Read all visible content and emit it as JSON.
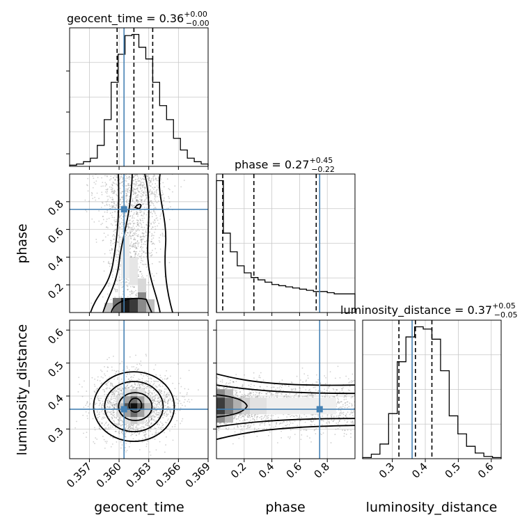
{
  "chart_data": {
    "type": "corner",
    "parameters": [
      {
        "name": "geocent_time",
        "range": [
          0.355,
          0.369
        ],
        "ticks": [
          0.357,
          0.36,
          0.363,
          0.366,
          0.369
        ],
        "tick_labels": [
          "0.357",
          "0.360",
          "0.363",
          "0.366",
          "0.369"
        ],
        "truth": 0.3605,
        "median": 0.3615,
        "quantiles": [
          0.3598,
          0.3634
        ]
      },
      {
        "name": "phase",
        "range": [
          0.0,
          1.0
        ],
        "ticks": [
          0.2,
          0.4,
          0.6,
          0.8
        ],
        "tick_labels": [
          "0.2",
          "0.4",
          "0.6",
          "0.8"
        ],
        "truth": 0.745,
        "median": 0.27,
        "quantiles": [
          0.045,
          0.72
        ]
      },
      {
        "name": "luminosity_distance",
        "range": [
          0.21,
          0.63
        ],
        "ticks": [
          0.3,
          0.4,
          0.5,
          0.6
        ],
        "tick_labels": [
          "0.3",
          "0.4",
          "0.5",
          "0.6"
        ],
        "truth": 0.36,
        "median": 0.37,
        "quantiles": [
          0.32,
          0.42
        ]
      }
    ],
    "titles": [
      {
        "base": "geocent_time = 0.36",
        "sup": "+0.00",
        "sub": "−0.00"
      },
      {
        "base": "phase = 0.27",
        "sup": "+0.45",
        "sub": "−0.22"
      },
      {
        "base": "luminosity_distance = 0.37",
        "sup": "+0.05",
        "sub": "−0.05"
      }
    ],
    "histograms": {
      "geocent_time": [
        1,
        2,
        4,
        7,
        18,
        40,
        72,
        96,
        112,
        113,
        102,
        92,
        72,
        52,
        40,
        24,
        14,
        7,
        4,
        2
      ],
      "phase": [
        113,
        68,
        52,
        40,
        34,
        30,
        28,
        26,
        24,
        23,
        22,
        21,
        20,
        19,
        18,
        18,
        17,
        16,
        16,
        16
      ],
      "luminosity_distance": [
        1,
        4,
        13,
        40,
        86,
        108,
        117,
        115,
        106,
        78,
        38,
        22,
        11,
        5,
        2,
        1
      ]
    },
    "truth_color": "#4682b4",
    "line_color": "#000000"
  }
}
